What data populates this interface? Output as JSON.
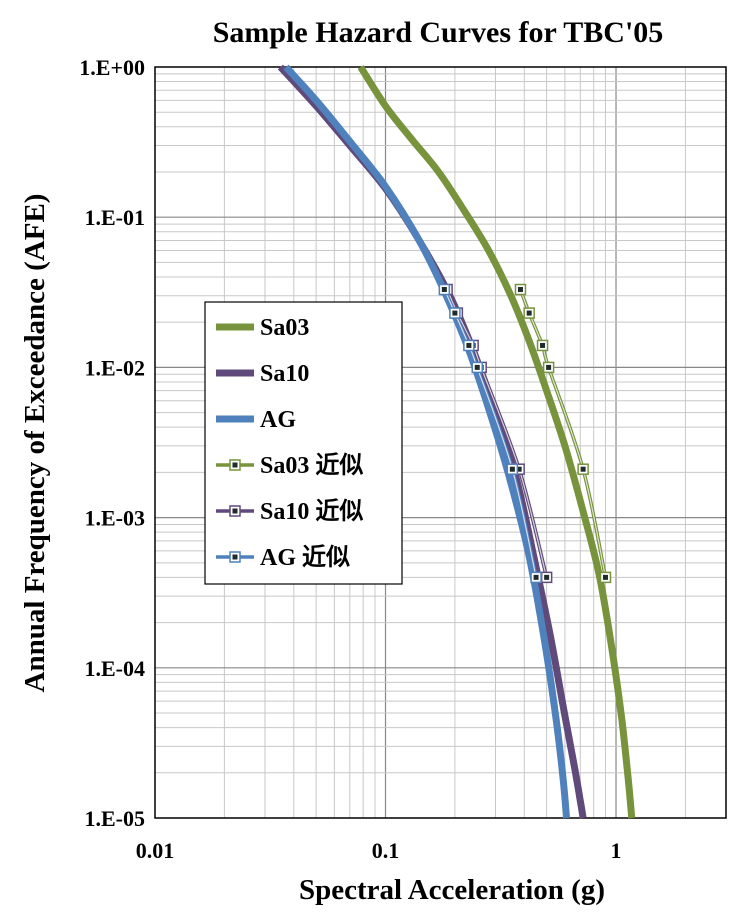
{
  "chart_data": {
    "type": "line",
    "title": "Sample Hazard Curves for TBC'05",
    "xlabel": "Spectral Acceleration (g)",
    "ylabel": "Annual Frequency of Exceedance (AFE)",
    "x_scale": "log",
    "y_scale": "log",
    "xlim": [
      0.01,
      3
    ],
    "ylim": [
      1e-05,
      1
    ],
    "x_ticks": [
      0.01,
      0.1,
      1
    ],
    "x_tick_labels": [
      "0.01",
      "0.1",
      "1"
    ],
    "y_ticks": [
      1,
      0.1,
      0.01,
      0.001,
      0.0001,
      1e-05
    ],
    "y_tick_labels": [
      "1.E+00",
      "1.E-01",
      "1.E-02",
      "1.E-03",
      "1.E-04",
      "1.E-05"
    ],
    "grid": true,
    "legend_position": "center-left",
    "series": [
      {
        "name": "Sa03",
        "color": "#77933C",
        "kind": "curve",
        "x": [
          0.078,
          0.1,
          0.13,
          0.17,
          0.22,
          0.28,
          0.35,
          0.42,
          0.5,
          0.6,
          0.72,
          0.85,
          0.97,
          1.06,
          1.13,
          1.17
        ],
        "y": [
          1.0,
          0.55,
          0.33,
          0.2,
          0.11,
          0.06,
          0.03,
          0.015,
          0.007,
          0.003,
          0.0011,
          0.0004,
          0.00012,
          4.5e-05,
          1.8e-05,
          1e-05
        ]
      },
      {
        "name": "Sa10",
        "color": "#604A7B",
        "kind": "curve",
        "x": [
          0.035,
          0.05,
          0.07,
          0.1,
          0.14,
          0.19,
          0.24,
          0.3,
          0.37,
          0.44,
          0.52,
          0.6,
          0.66,
          0.7,
          0.72
        ],
        "y": [
          1.0,
          0.55,
          0.3,
          0.155,
          0.07,
          0.03,
          0.013,
          0.005,
          0.0018,
          0.00055,
          0.00016,
          4.8e-05,
          2.2e-05,
          1.3e-05,
          1e-05
        ]
      },
      {
        "name": "AG",
        "color": "#4F81BD",
        "kind": "curve",
        "x": [
          0.037,
          0.05,
          0.07,
          0.1,
          0.14,
          0.18,
          0.23,
          0.29,
          0.35,
          0.42,
          0.49,
          0.55,
          0.59,
          0.61
        ],
        "y": [
          1.0,
          0.6,
          0.32,
          0.16,
          0.07,
          0.032,
          0.013,
          0.0045,
          0.0017,
          0.00055,
          0.00015,
          4.5e-05,
          1.8e-05,
          1e-05
        ]
      },
      {
        "name": "Sa03 近似",
        "color": "#77933C",
        "kind": "approx",
        "x": [
          0.385,
          0.42,
          0.48,
          0.51,
          0.72,
          0.9
        ],
        "y": [
          0.033,
          0.023,
          0.014,
          0.01,
          0.0021,
          0.0004
        ]
      },
      {
        "name": "Sa10 近似",
        "color": "#604A7B",
        "kind": "approx",
        "x": [
          0.185,
          0.205,
          0.24,
          0.26,
          0.38,
          0.5
        ],
        "y": [
          0.033,
          0.023,
          0.014,
          0.01,
          0.0021,
          0.0004
        ]
      },
      {
        "name": "AG 近似",
        "color": "#4F81BD",
        "kind": "approx",
        "x": [
          0.18,
          0.2,
          0.23,
          0.25,
          0.355,
          0.45
        ],
        "y": [
          0.033,
          0.023,
          0.014,
          0.01,
          0.0021,
          0.0004
        ]
      }
    ]
  }
}
